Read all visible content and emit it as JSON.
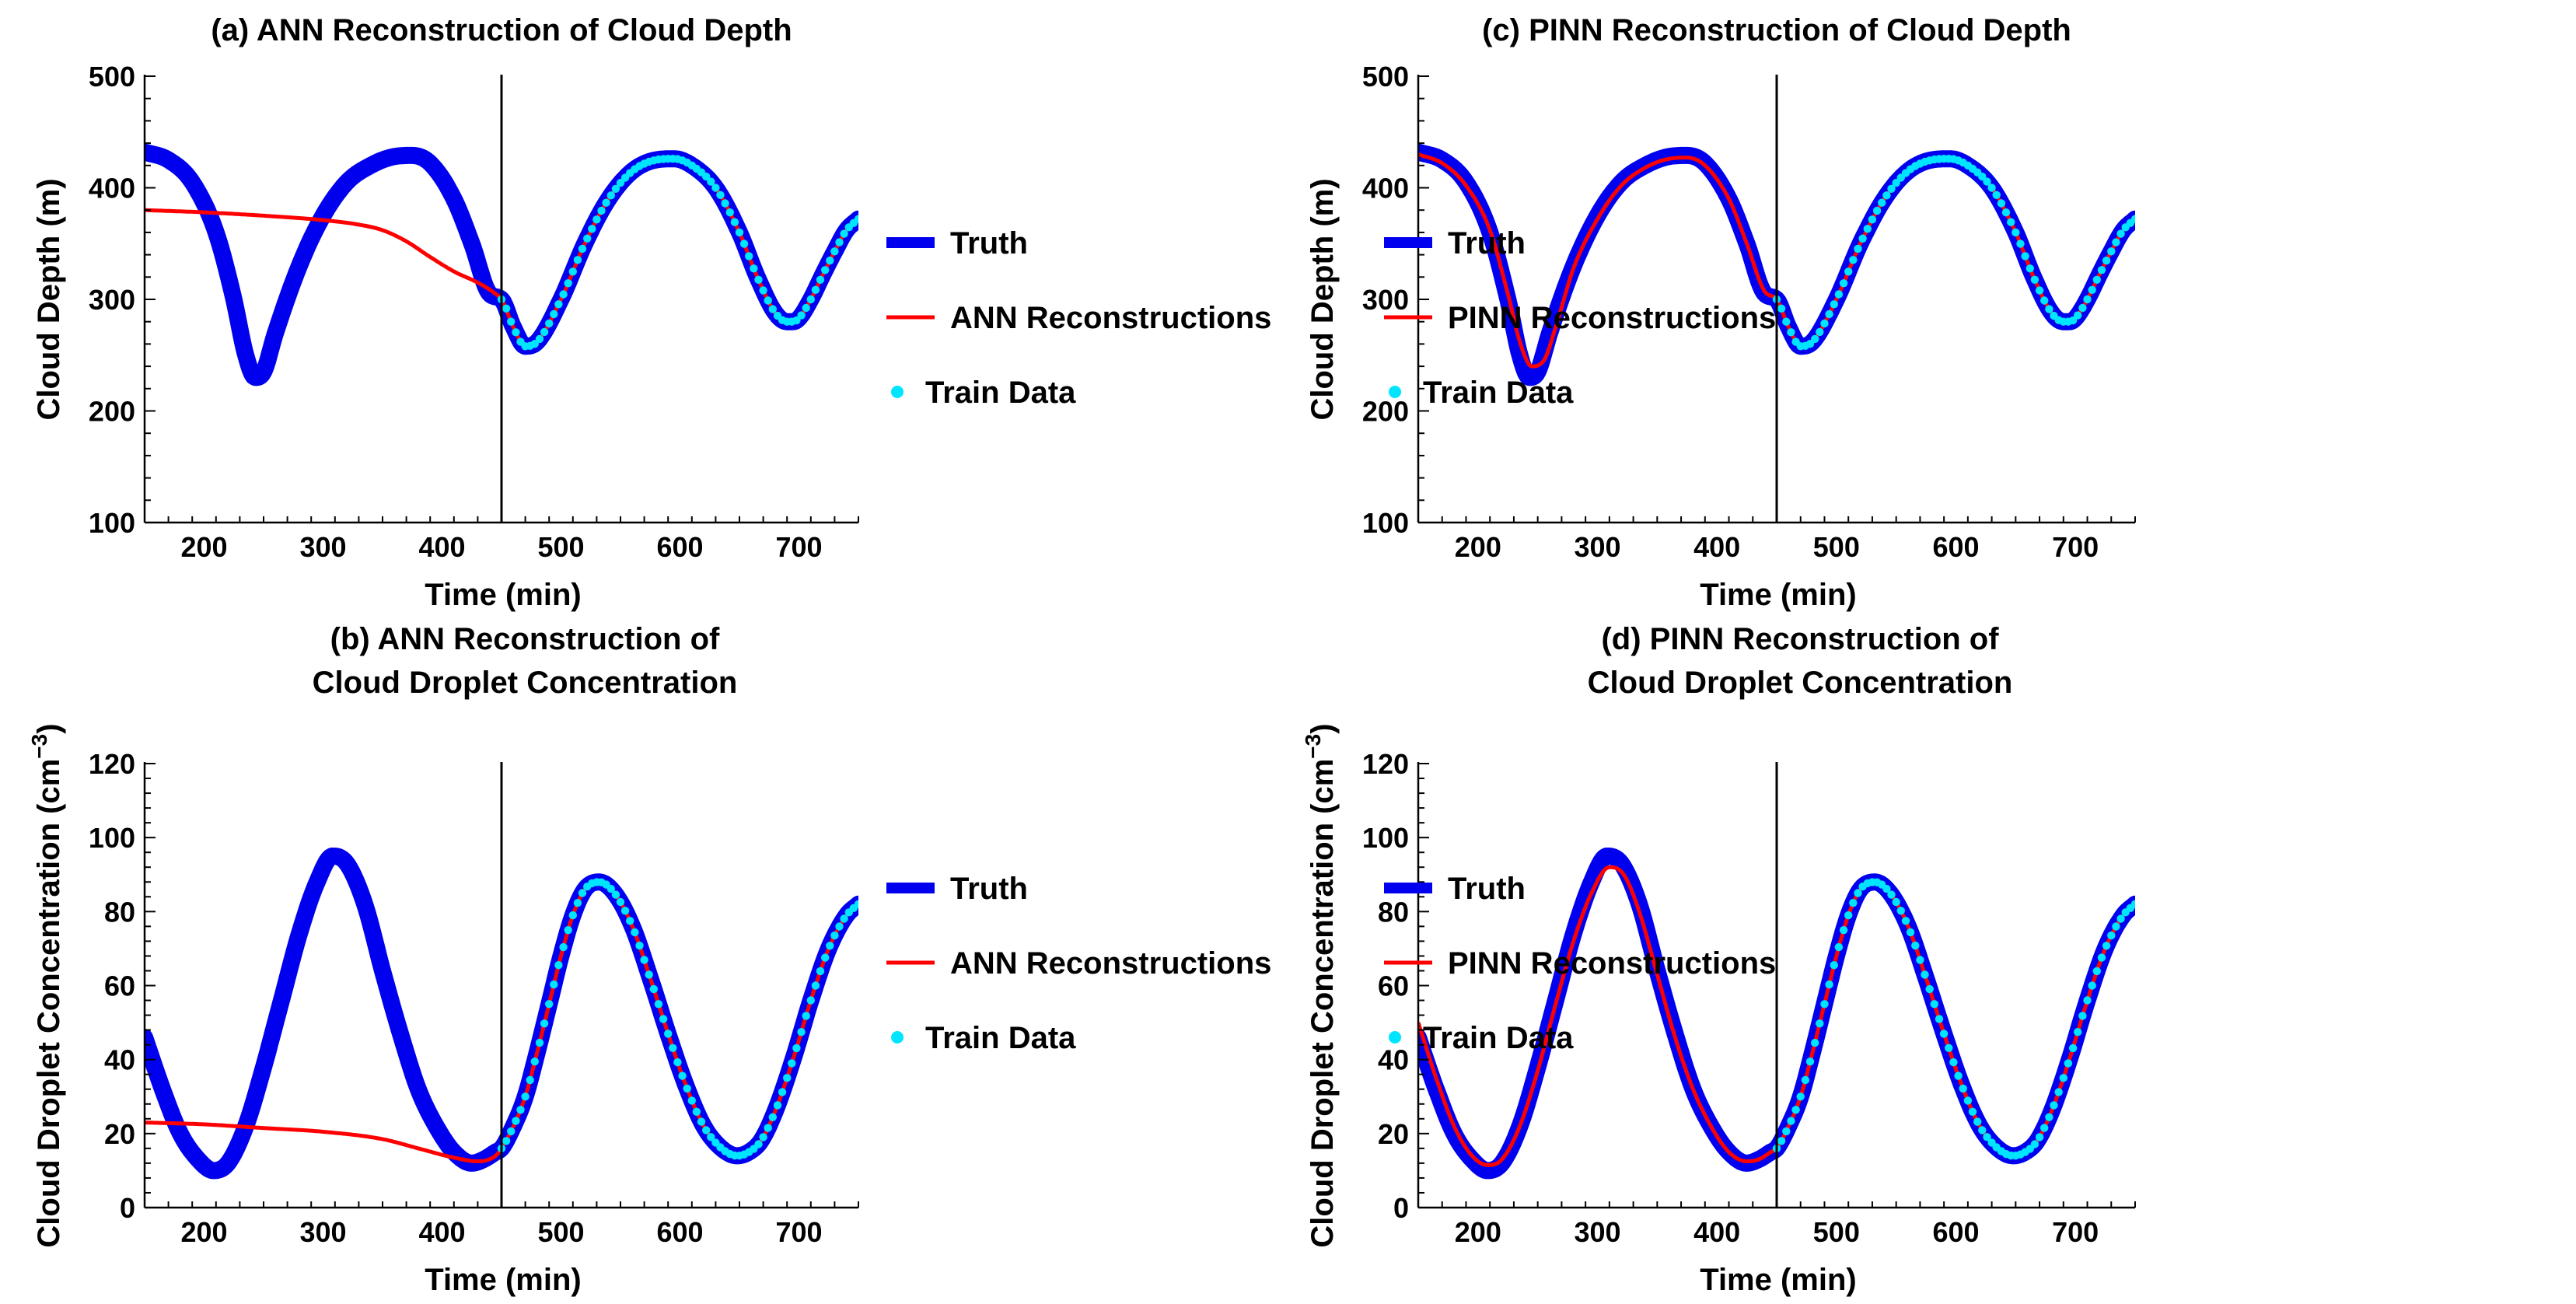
{
  "colors": {
    "truth": "#0000ee",
    "recon": "#ff0000",
    "train": "#00e5ff",
    "axis": "#000000"
  },
  "chart_data": [
    {
      "id": "a",
      "type": "line",
      "title_lines": [
        "(a) ANN Reconstruction of Cloud Depth"
      ],
      "xlabel": "Time (min)",
      "ylabel": "Cloud Depth (m)",
      "ylabel_sup": "",
      "xlim": [
        150,
        750
      ],
      "ylim": [
        100,
        500
      ],
      "xticks": [
        200,
        300,
        400,
        500,
        600,
        700
      ],
      "yticks": [
        100,
        200,
        300,
        400,
        500
      ],
      "divider_x": 450,
      "legend": {
        "truth": "Truth",
        "recon": "ANN Reconstructions",
        "train": "Train Data"
      },
      "truth": {
        "x": [
          150,
          170,
          190,
          210,
          225,
          235,
          243,
          250,
          260,
          280,
          300,
          320,
          340,
          360,
          375,
          390,
          410,
          425,
          440,
          450,
          460,
          470,
          480,
          500,
          520,
          540,
          560,
          580,
          595,
          610,
          630,
          650,
          665,
          680,
          690,
          695,
          700,
          710,
          720,
          730,
          740,
          750
        ],
        "y": [
          432,
          425,
          405,
          360,
          300,
          250,
          230,
          235,
          270,
          330,
          375,
          405,
          420,
          428,
          429,
          422,
          390,
          350,
          305,
          300,
          275,
          258,
          262,
          300,
          350,
          390,
          415,
          425,
          426,
          420,
          400,
          360,
          320,
          288,
          280,
          280,
          283,
          300,
          322,
          343,
          362,
          372
        ]
      },
      "recon": {
        "x": [
          150,
          200,
          250,
          300,
          330,
          350,
          370,
          390,
          410,
          430,
          445,
          450,
          460,
          470,
          480,
          500,
          520,
          540,
          560,
          580,
          595,
          610,
          630,
          650,
          665,
          680,
          690,
          695,
          700,
          710,
          720,
          730,
          740,
          750
        ],
        "y": [
          380,
          378,
          375,
          371,
          367,
          362,
          352,
          338,
          325,
          315,
          305,
          300,
          275,
          258,
          262,
          300,
          350,
          390,
          415,
          425,
          426,
          420,
          400,
          360,
          320,
          288,
          280,
          280,
          283,
          300,
          322,
          343,
          362,
          372
        ]
      },
      "train": {
        "x_start": 450,
        "x_end": 750,
        "step": 4
      }
    },
    {
      "id": "b",
      "type": "line",
      "title_lines": [
        "(b) ANN Reconstruction of",
        "Cloud Droplet Concentration"
      ],
      "xlabel": "Time (min)",
      "ylabel": "Cloud Droplet Concentration (cm",
      "ylabel_sup": "−3",
      "ylabel_tail": ")",
      "xlim": [
        150,
        750
      ],
      "ylim": [
        0,
        120
      ],
      "xticks": [
        200,
        300,
        400,
        500,
        600,
        700
      ],
      "yticks": [
        0,
        20,
        40,
        60,
        80,
        100,
        120
      ],
      "divider_x": 450,
      "legend": {
        "truth": "Truth",
        "recon": "ANN Reconstructions",
        "train": "Train Data"
      },
      "truth": {
        "x": [
          150,
          165,
          180,
          195,
          208,
          220,
          235,
          250,
          265,
          280,
          295,
          308,
          320,
          335,
          350,
          365,
          380,
          395,
          410,
          425,
          435,
          445,
          450,
          460,
          470,
          480,
          490,
          500,
          510,
          520,
          532,
          545,
          560,
          575,
          590,
          605,
          620,
          635,
          648,
          658,
          668,
          680,
          695,
          710,
          725,
          740,
          750
        ],
        "y": [
          46,
          32,
          20,
          13,
          10,
          12,
          22,
          38,
          56,
          74,
          88,
          95,
          93,
          82,
          64,
          47,
          32,
          22,
          15,
          12,
          13,
          15,
          16,
          22,
          30,
          42,
          55,
          68,
          79,
          86,
          88,
          85,
          76,
          62,
          47,
          33,
          22,
          16,
          14,
          15,
          18,
          26,
          40,
          56,
          70,
          79,
          82
        ]
      },
      "recon": {
        "x": [
          150,
          200,
          250,
          300,
          350,
          380,
          410,
          430,
          445,
          450,
          460,
          470,
          480,
          490,
          500,
          510,
          520,
          532,
          545,
          560,
          575,
          590,
          605,
          620,
          635,
          648,
          658,
          668,
          680,
          695,
          710,
          725,
          740,
          750
        ],
        "y": [
          23,
          22.5,
          21.5,
          20.5,
          18.5,
          16,
          13.5,
          12.5,
          14,
          16,
          22,
          30,
          42,
          55,
          68,
          79,
          86,
          88,
          85,
          76,
          62,
          47,
          33,
          22,
          16,
          14,
          15,
          18,
          26,
          40,
          56,
          70,
          79,
          82
        ]
      },
      "train": {
        "x_start": 450,
        "x_end": 750,
        "step": 4
      }
    },
    {
      "id": "c",
      "type": "line",
      "title_lines": [
        "(c) PINN Reconstruction of Cloud Depth"
      ],
      "xlabel": "Time (min)",
      "ylabel": "Cloud Depth (m)",
      "ylabel_sup": "",
      "xlim": [
        150,
        750
      ],
      "ylim": [
        100,
        500
      ],
      "xticks": [
        200,
        300,
        400,
        500,
        600,
        700
      ],
      "yticks": [
        100,
        200,
        300,
        400,
        500
      ],
      "divider_x": 450,
      "legend": {
        "truth": "Truth",
        "recon": "PINN Reconstructions",
        "train": "Train Data"
      },
      "truth": {
        "x": [
          150,
          170,
          190,
          210,
          225,
          235,
          243,
          250,
          260,
          280,
          300,
          320,
          340,
          360,
          375,
          390,
          410,
          425,
          440,
          450,
          460,
          470,
          480,
          500,
          520,
          540,
          560,
          580,
          595,
          610,
          630,
          650,
          665,
          680,
          690,
          695,
          700,
          710,
          720,
          730,
          740,
          750
        ],
        "y": [
          432,
          425,
          405,
          360,
          300,
          250,
          230,
          235,
          270,
          330,
          375,
          405,
          420,
          428,
          429,
          422,
          390,
          350,
          305,
          300,
          275,
          258,
          262,
          300,
          350,
          390,
          415,
          425,
          426,
          420,
          400,
          360,
          320,
          288,
          280,
          280,
          283,
          300,
          322,
          343,
          362,
          372
        ]
      },
      "recon": {
        "x": [
          150,
          170,
          190,
          210,
          225,
          235,
          245,
          255,
          265,
          280,
          300,
          320,
          340,
          360,
          375,
          390,
          410,
          425,
          440,
          450,
          460,
          470,
          480,
          500,
          520,
          540,
          560,
          580,
          595,
          610,
          630,
          650,
          665,
          680,
          690,
          695,
          700,
          710,
          720,
          730,
          740,
          750
        ],
        "y": [
          430,
          422,
          402,
          362,
          305,
          262,
          240,
          245,
          275,
          328,
          372,
          402,
          418,
          426,
          427,
          420,
          390,
          350,
          307,
          300,
          275,
          258,
          262,
          300,
          350,
          390,
          415,
          425,
          426,
          420,
          400,
          360,
          320,
          288,
          280,
          280,
          283,
          300,
          322,
          343,
          362,
          372
        ]
      },
      "train": {
        "x_start": 450,
        "x_end": 750,
        "step": 4
      }
    },
    {
      "id": "d",
      "type": "line",
      "title_lines": [
        "(d) PINN Reconstruction of",
        "Cloud Droplet Concentration"
      ],
      "xlabel": "Time (min)",
      "ylabel": "Cloud Droplet Concentration (cm",
      "ylabel_sup": "−3",
      "ylabel_tail": ")",
      "xlim": [
        150,
        750
      ],
      "ylim": [
        0,
        120
      ],
      "xticks": [
        200,
        300,
        400,
        500,
        600,
        700
      ],
      "yticks": [
        0,
        20,
        40,
        60,
        80,
        100,
        120
      ],
      "divider_x": 450,
      "legend": {
        "truth": "Truth",
        "recon": "PINN Reconstructions",
        "train": "Train Data"
      },
      "truth": {
        "x": [
          150,
          165,
          180,
          195,
          208,
          220,
          235,
          250,
          265,
          280,
          295,
          308,
          320,
          335,
          350,
          365,
          380,
          395,
          410,
          425,
          435,
          445,
          450,
          460,
          470,
          480,
          490,
          500,
          510,
          520,
          532,
          545,
          560,
          575,
          590,
          605,
          620,
          635,
          648,
          658,
          668,
          680,
          695,
          710,
          725,
          740,
          750
        ],
        "y": [
          46,
          32,
          20,
          13,
          10,
          12,
          22,
          38,
          56,
          74,
          88,
          95,
          93,
          82,
          64,
          47,
          32,
          22,
          15,
          12,
          13,
          15,
          16,
          22,
          30,
          42,
          55,
          68,
          79,
          86,
          88,
          85,
          76,
          62,
          47,
          33,
          22,
          16,
          14,
          15,
          18,
          26,
          40,
          56,
          70,
          79,
          82
        ]
      },
      "recon": {
        "x": [
          150,
          165,
          180,
          195,
          208,
          220,
          235,
          250,
          265,
          280,
          295,
          310,
          322,
          335,
          350,
          365,
          380,
          395,
          410,
          425,
          435,
          445,
          450,
          460,
          470,
          480,
          490,
          500,
          510,
          520,
          532,
          545,
          560,
          575,
          590,
          605,
          620,
          635,
          648,
          658,
          668,
          680,
          695,
          710,
          725,
          740,
          750
        ],
        "y": [
          50,
          35,
          22,
          14,
          11.5,
          13,
          22,
          37,
          55,
          72,
          85,
          92,
          90,
          80,
          63,
          46,
          32,
          22,
          15,
          12.5,
          13,
          15,
          16,
          22,
          30,
          42,
          55,
          68,
          79,
          86,
          88,
          85,
          76,
          62,
          47,
          33,
          22,
          16,
          14,
          15,
          18,
          26,
          40,
          56,
          70,
          79,
          82
        ]
      },
      "train": {
        "x_start": 450,
        "x_end": 750,
        "step": 4
      }
    }
  ]
}
